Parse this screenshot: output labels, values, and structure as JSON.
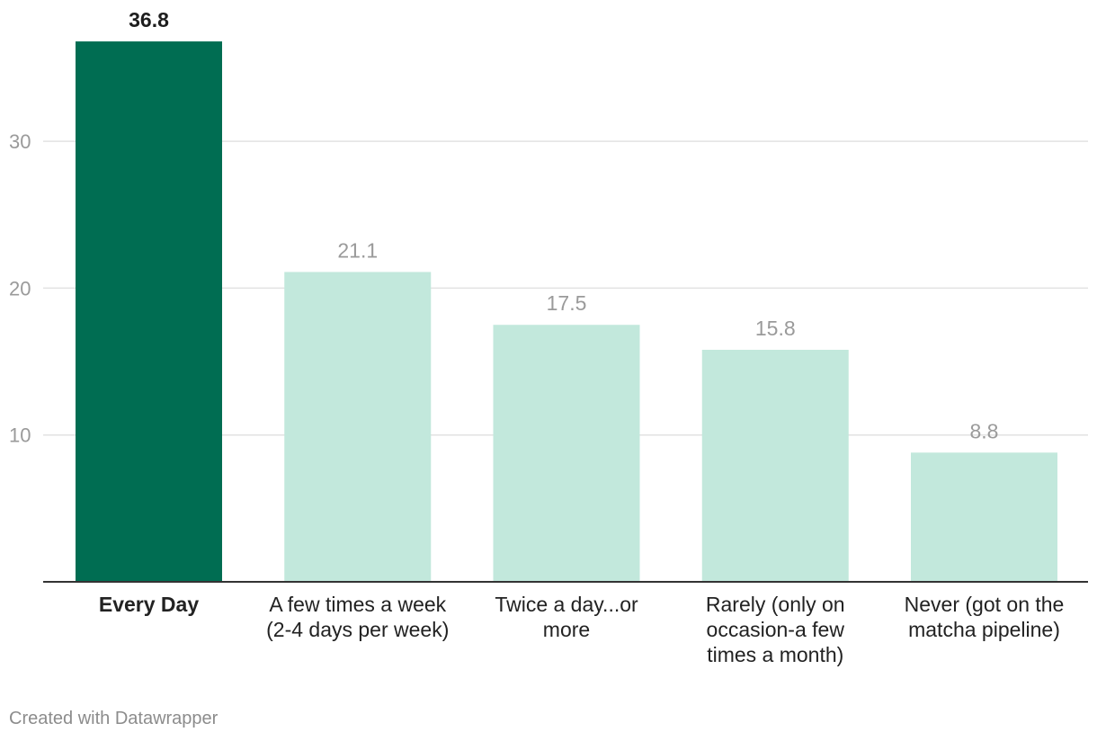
{
  "chart_data": {
    "type": "bar",
    "categories": [
      "Every Day",
      "A few times a week (2-4 days per week)",
      "Twice a day...or more",
      "Rarely (only on occasion-a few times a month)",
      "Never (got on the matcha pipeline)"
    ],
    "category_lines": [
      [
        "Every Day"
      ],
      [
        "A few times a week",
        "(2-4 days per week)"
      ],
      [
        "Twice a day...or",
        "more"
      ],
      [
        "Rarely (only on",
        "occasion-a few",
        "times a month)"
      ],
      [
        "Never (got on the",
        "matcha pipeline)"
      ]
    ],
    "values": [
      36.8,
      21.1,
      17.5,
      15.8,
      8.8
    ],
    "value_labels": [
      "36.8",
      "21.1",
      "17.5",
      "15.8",
      "8.8"
    ],
    "highlight_index": 0,
    "ylim": [
      0,
      40
    ],
    "yticks": [
      10,
      20,
      30
    ],
    "grid": true,
    "colors": {
      "highlight": "#006d52",
      "normal": "#c2e8dc",
      "grid": "#e2e2e2",
      "baseline": "#333333"
    }
  },
  "footer": {
    "credit": "Created with Datawrapper"
  }
}
